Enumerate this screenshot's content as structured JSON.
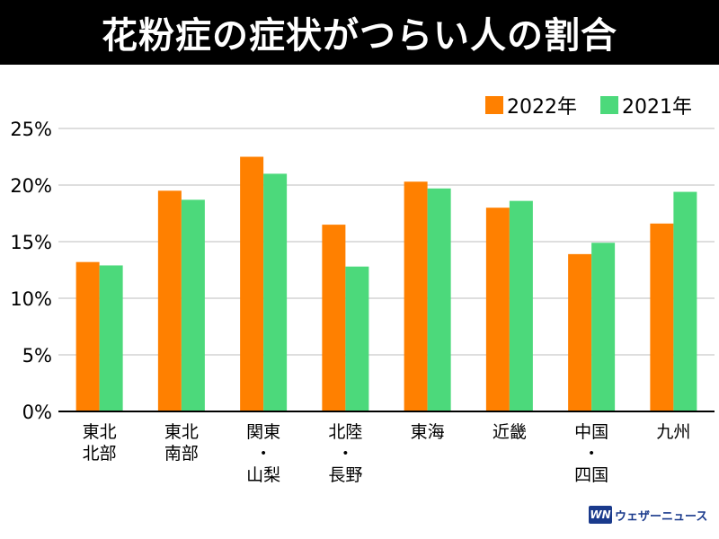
{
  "chart_data": {
    "type": "bar",
    "title": "花粉症の症状がつらい人の割合",
    "categories": [
      "東北\n北部",
      "東北\n南部",
      "関東\n・\n山梨",
      "北陸\n・\n長野",
      "東海",
      "近畿",
      "中国\n・\n四国",
      "九州"
    ],
    "series": [
      {
        "name": "2022年",
        "color": "#ff8000",
        "values": [
          13.2,
          19.5,
          22.5,
          16.5,
          20.3,
          18.0,
          13.9,
          16.6
        ]
      },
      {
        "name": "2021年",
        "color": "#4cd97b",
        "values": [
          12.9,
          18.7,
          21.0,
          12.8,
          19.7,
          18.6,
          14.9,
          19.4
        ]
      }
    ],
    "ylim": [
      0,
      25
    ],
    "yticks": [
      0,
      5,
      10,
      15,
      20,
      25
    ],
    "ytick_labels": [
      "0%",
      "5%",
      "10%",
      "15%",
      "20%",
      "25%"
    ],
    "grid": true,
    "legend": "top-right"
  },
  "logo": {
    "mark": "WN",
    "text": "ウェザーニュース"
  }
}
